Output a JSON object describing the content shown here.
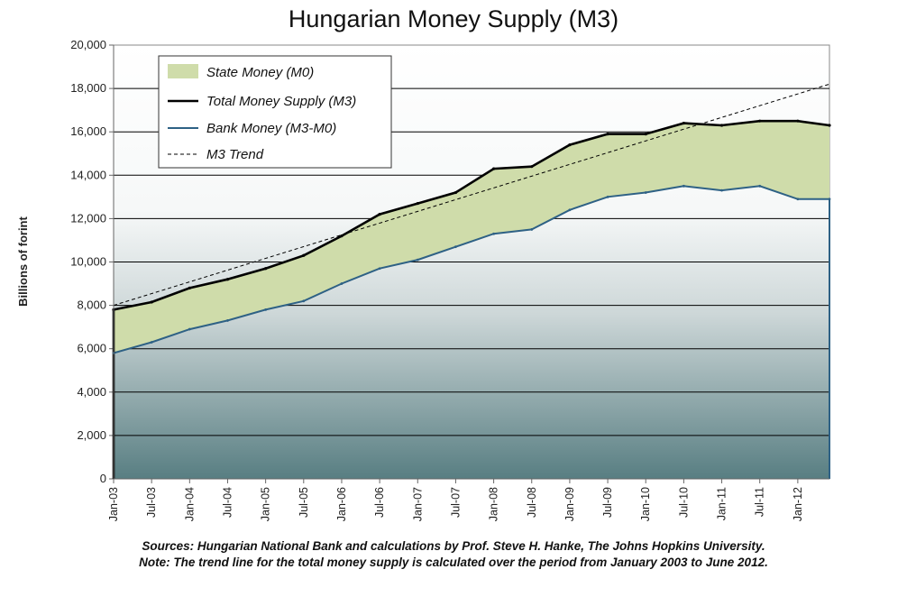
{
  "chart_data": {
    "type": "line",
    "title": "Hungarian Money Supply (M3)",
    "ylabel": "Billions of forint",
    "xlabel": "",
    "ylim": [
      0,
      20000
    ],
    "yticks": [
      "0",
      "2,000",
      "4,000",
      "6,000",
      "8,000",
      "10,000",
      "12,000",
      "14,000",
      "16,000",
      "18,000",
      "20,000"
    ],
    "ytick_values": [
      0,
      2000,
      4000,
      6000,
      8000,
      10000,
      12000,
      14000,
      16000,
      18000,
      20000
    ],
    "xticks": [
      "Jan-03",
      "Jul-03",
      "Jan-04",
      "Jul-04",
      "Jan-05",
      "Jul-05",
      "Jan-06",
      "Jul-06",
      "Jan-07",
      "Jul-07",
      "Jan-08",
      "Jul-08",
      "Jan-09",
      "Jul-09",
      "Jan-10",
      "Jul-10",
      "Jan-11",
      "Jul-11",
      "Jan-12"
    ],
    "xtick_months": [
      0,
      6,
      12,
      18,
      24,
      30,
      36,
      42,
      48,
      54,
      60,
      66,
      72,
      78,
      84,
      90,
      96,
      102,
      108
    ],
    "x_months": [
      0,
      6,
      12,
      18,
      24,
      30,
      36,
      42,
      48,
      54,
      60,
      66,
      72,
      78,
      84,
      90,
      96,
      102,
      108,
      113
    ],
    "legend": [
      "State Money (M0)",
      "Total Money Supply (M3)",
      "Bank Money (M3-M0)",
      "M3 Trend"
    ],
    "series": [
      {
        "name": "Total Money Supply (M3)",
        "values": [
          7800,
          8150,
          8800,
          9200,
          9700,
          10300,
          11200,
          12200,
          12700,
          13200,
          14300,
          14400,
          15400,
          15900,
          15900,
          16400,
          16300,
          16500,
          16500,
          16300
        ]
      },
      {
        "name": "Bank Money (M3-M0)",
        "values": [
          5800,
          6300,
          6900,
          7300,
          7800,
          8200,
          9000,
          9700,
          10100,
          10700,
          11300,
          11500,
          12400,
          13000,
          13200,
          13500,
          13300,
          13500,
          12900,
          12900
        ]
      },
      {
        "name": "M3 Trend",
        "start": 8000,
        "end": 18200
      }
    ],
    "sources_note": "Sources: Hungarian National Bank and calculations by Prof. Steve H. Hanke, The Johns Hopkins University.",
    "trend_note": "Note: The trend line for the total money supply is calculated over the period from January 2003 to June 2012."
  },
  "colors": {
    "state_money_fill": "#cfdcaa",
    "total_line": "#000000",
    "bank_line": "#2e6185",
    "trend_line": "#000000",
    "gradient_top": "#ffffff",
    "gradient_bottom": "#587e82"
  }
}
